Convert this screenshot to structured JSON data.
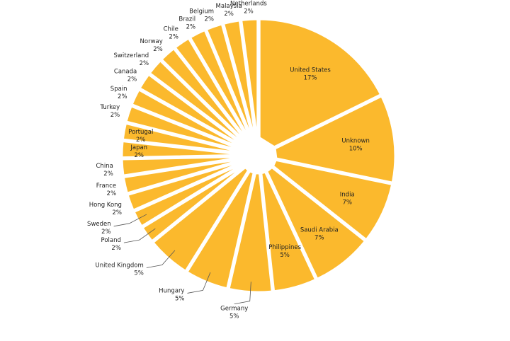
{
  "chart_data": {
    "type": "pie",
    "title": "",
    "legend": "none",
    "color": "#fbb92d",
    "slices": [
      {
        "label": "United States",
        "value_label": "17%",
        "value": 16.8
      },
      {
        "label": "Unknown",
        "value_label": "10%",
        "value": 10.0
      },
      {
        "label": "India",
        "value_label": "7%",
        "value": 7.0
      },
      {
        "label": "Saudi Arabia",
        "value_label": "7%",
        "value": 7.0
      },
      {
        "label": "Philippines",
        "value_label": "5%",
        "value": 5.0
      },
      {
        "label": "Germany",
        "value_label": "5%",
        "value": 5.0
      },
      {
        "label": "Hungary",
        "value_label": "5%",
        "value": 5.0
      },
      {
        "label": "United Kingdom",
        "value_label": "5%",
        "value": 5.0
      },
      {
        "label": "Poland",
        "value_label": "2%",
        "value": 2.0
      },
      {
        "label": "Sweden",
        "value_label": "2%",
        "value": 2.0
      },
      {
        "label": "Hong Kong",
        "value_label": "2%",
        "value": 2.0
      },
      {
        "label": "France",
        "value_label": "2%",
        "value": 2.0
      },
      {
        "label": "China",
        "value_label": "2%",
        "value": 2.0
      },
      {
        "label": "Japan",
        "value_label": "2%",
        "value": 2.0
      },
      {
        "label": "Portugal",
        "value_label": "2%",
        "value": 2.0
      },
      {
        "label": "Turkey",
        "value_label": "2%",
        "value": 2.0
      },
      {
        "label": "Spain",
        "value_label": "2%",
        "value": 2.0
      },
      {
        "label": "Canada",
        "value_label": "2%",
        "value": 2.0
      },
      {
        "label": "Switzerland",
        "value_label": "2%",
        "value": 2.0
      },
      {
        "label": "Norway",
        "value_label": "2%",
        "value": 2.0
      },
      {
        "label": "Chile",
        "value_label": "2%",
        "value": 2.0
      },
      {
        "label": "Brazil",
        "value_label": "2%",
        "value": 2.0
      },
      {
        "label": "Belgium",
        "value_label": "2%",
        "value": 2.0
      },
      {
        "label": "Malaysia",
        "value_label": "2%",
        "value": 2.0
      },
      {
        "label": "Netherlands",
        "value_label": "2%",
        "value": 2.0
      }
    ]
  }
}
